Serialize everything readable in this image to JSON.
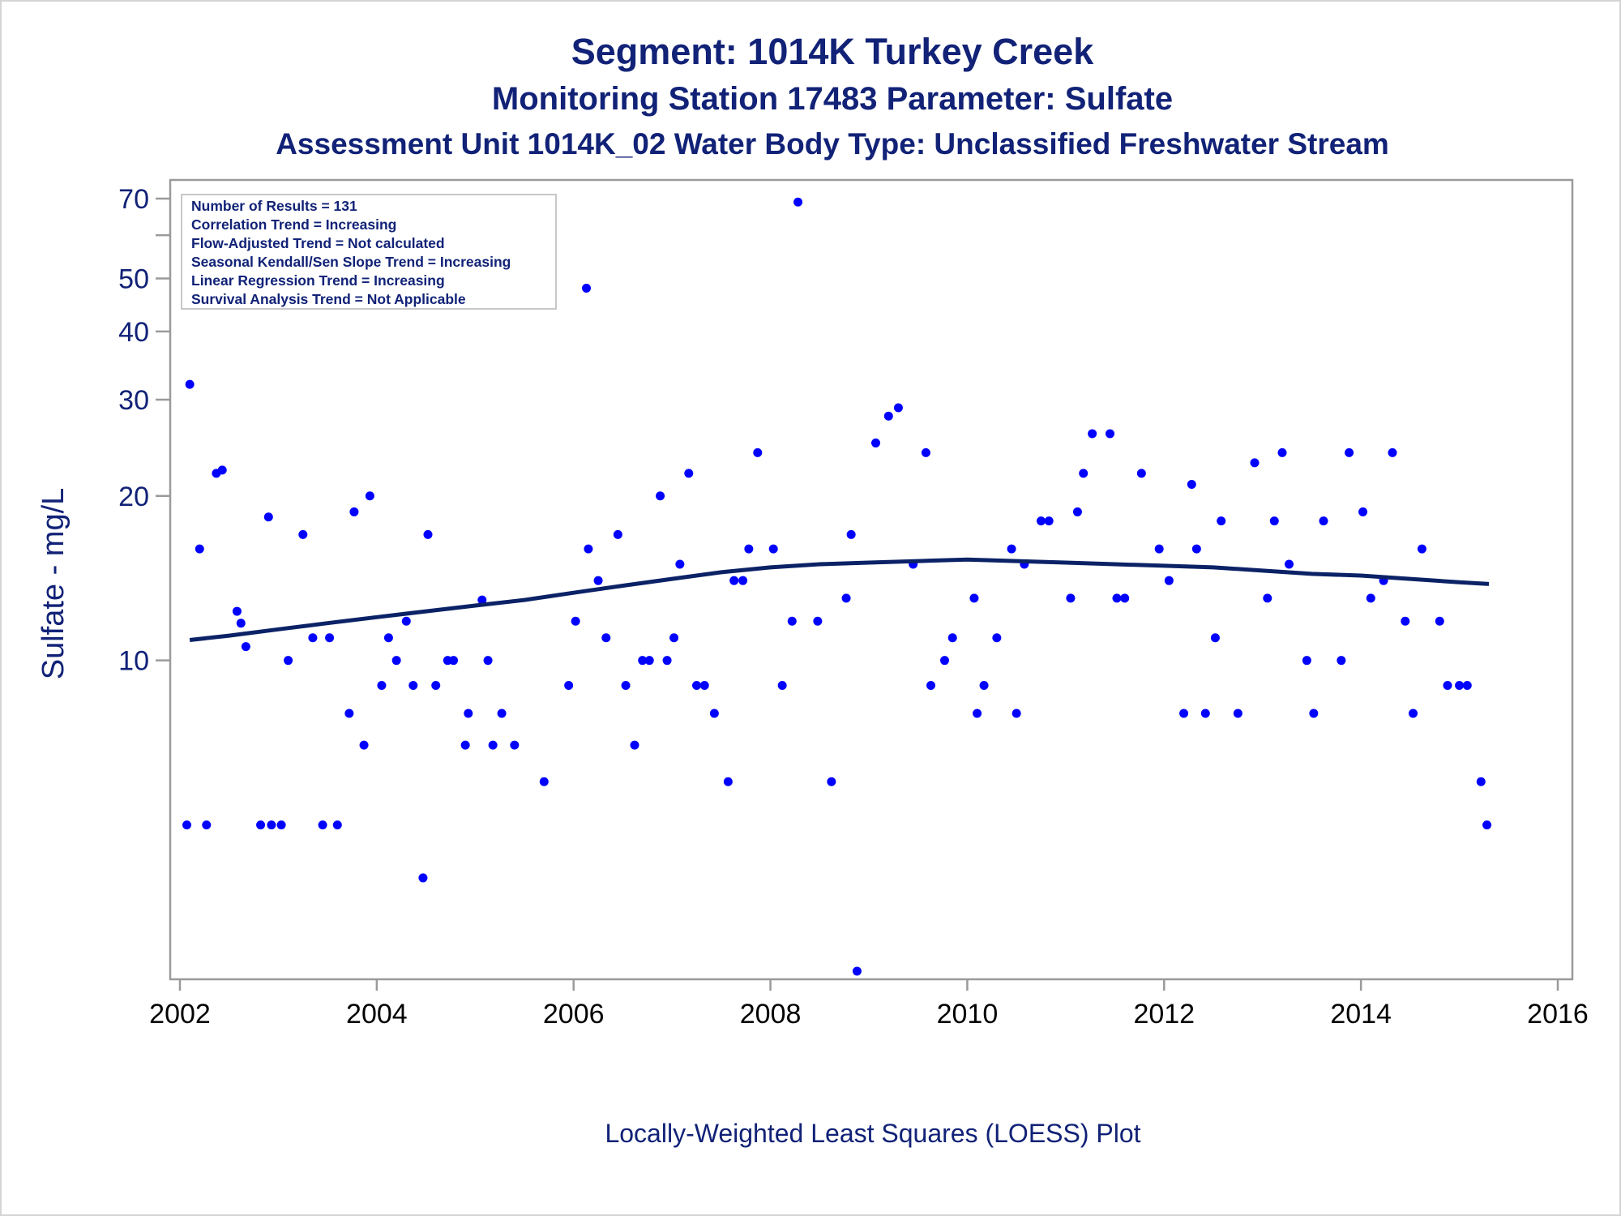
{
  "titles": {
    "line1": "Segment: 1014K  Turkey Creek",
    "line2": "Monitoring Station 17483 Parameter: Sulfate",
    "line3": "Assessment Unit 1014K_02   Water Body Type: Unclassified Freshwater Stream"
  },
  "footnote": "Locally-Weighted Least Squares (LOESS) Plot",
  "inset": [
    "Number of Results = 131",
    "Correlation Trend = Increasing",
    "Flow-Adjusted Trend = Not calculated",
    "Seasonal Kendall/Sen Slope Trend = Increasing",
    "Linear Regression Trend = Increasing",
    "Survival Analysis Trend = Not Applicable"
  ],
  "colors": {
    "text": "#112277",
    "points": "#0000ff",
    "line": "#0b2266",
    "frame": "#9a9a9a"
  },
  "chart_data": {
    "type": "scatter",
    "ylabel": "Sulfate - mg/L",
    "xlabel": "",
    "yscale": "log",
    "xlim": [
      2002,
      2016
    ],
    "ylim": [
      2.7,
      70
    ],
    "xticks": [
      "2002",
      "2004",
      "2006",
      "2008",
      "2010",
      "2012",
      "2014",
      "2016"
    ],
    "yticks": [
      {
        "value": 10,
        "label": "10"
      },
      {
        "value": 20,
        "label": "20"
      },
      {
        "value": 30,
        "label": "30"
      },
      {
        "value": 40,
        "label": "40"
      },
      {
        "value": 50,
        "label": "50"
      },
      {
        "value": 60,
        "label": ""
      },
      {
        "value": 70,
        "label": "70"
      }
    ],
    "points": [
      [
        2002.07,
        5
      ],
      [
        2002.1,
        32
      ],
      [
        2002.2,
        16
      ],
      [
        2002.27,
        5
      ],
      [
        2002.37,
        22
      ],
      [
        2002.43,
        22.3
      ],
      [
        2002.58,
        12.3
      ],
      [
        2002.62,
        11.7
      ],
      [
        2002.67,
        10.6
      ],
      [
        2002.82,
        5
      ],
      [
        2002.9,
        18.3
      ],
      [
        2002.93,
        5
      ],
      [
        2003.03,
        5
      ],
      [
        2003.1,
        10
      ],
      [
        2003.25,
        17
      ],
      [
        2003.35,
        11
      ],
      [
        2003.45,
        5
      ],
      [
        2003.52,
        11
      ],
      [
        2003.6,
        5
      ],
      [
        2003.72,
        8
      ],
      [
        2003.77,
        18.7
      ],
      [
        2003.87,
        7
      ],
      [
        2003.93,
        20
      ],
      [
        2004.05,
        9
      ],
      [
        2004.12,
        11
      ],
      [
        2004.2,
        10
      ],
      [
        2004.3,
        11.8
      ],
      [
        2004.37,
        9
      ],
      [
        2004.47,
        4
      ],
      [
        2004.52,
        17
      ],
      [
        2004.6,
        9
      ],
      [
        2004.72,
        10
      ],
      [
        2004.78,
        10
      ],
      [
        2004.9,
        7
      ],
      [
        2004.93,
        8
      ],
      [
        2005.07,
        12.9
      ],
      [
        2005.13,
        10
      ],
      [
        2005.18,
        7
      ],
      [
        2005.27,
        8
      ],
      [
        2005.4,
        7
      ],
      [
        2005.7,
        6
      ],
      [
        2005.95,
        9
      ],
      [
        2006.02,
        11.8
      ],
      [
        2006.13,
        48
      ],
      [
        2006.15,
        16
      ],
      [
        2006.25,
        14
      ],
      [
        2006.33,
        11
      ],
      [
        2006.45,
        17
      ],
      [
        2006.53,
        9
      ],
      [
        2006.62,
        7
      ],
      [
        2006.7,
        10
      ],
      [
        2006.77,
        10
      ],
      [
        2006.88,
        20
      ],
      [
        2006.95,
        10
      ],
      [
        2007.02,
        11
      ],
      [
        2007.08,
        15
      ],
      [
        2007.17,
        22
      ],
      [
        2007.25,
        9
      ],
      [
        2007.33,
        9
      ],
      [
        2007.43,
        8
      ],
      [
        2007.57,
        6
      ],
      [
        2007.63,
        14
      ],
      [
        2007.72,
        14
      ],
      [
        2007.78,
        16
      ],
      [
        2007.87,
        24
      ],
      [
        2008.03,
        16
      ],
      [
        2008.12,
        9
      ],
      [
        2008.22,
        11.8
      ],
      [
        2008.28,
        69
      ],
      [
        2008.48,
        11.8
      ],
      [
        2008.62,
        6
      ],
      [
        2008.77,
        13
      ],
      [
        2008.82,
        17
      ],
      [
        2008.88,
        2.7
      ],
      [
        2009.07,
        25
      ],
      [
        2009.2,
        28
      ],
      [
        2009.3,
        29
      ],
      [
        2009.45,
        15
      ],
      [
        2009.58,
        24
      ],
      [
        2009.63,
        9
      ],
      [
        2009.77,
        10
      ],
      [
        2009.85,
        11
      ],
      [
        2010.07,
        13
      ],
      [
        2010.1,
        8
      ],
      [
        2010.17,
        9
      ],
      [
        2010.3,
        11
      ],
      [
        2010.45,
        16
      ],
      [
        2010.5,
        8
      ],
      [
        2010.58,
        15
      ],
      [
        2010.75,
        18
      ],
      [
        2010.83,
        18
      ],
      [
        2011.05,
        13
      ],
      [
        2011.12,
        18.7
      ],
      [
        2011.18,
        22
      ],
      [
        2011.27,
        26
      ],
      [
        2011.45,
        26
      ],
      [
        2011.52,
        13
      ],
      [
        2011.6,
        13
      ],
      [
        2011.77,
        22
      ],
      [
        2011.95,
        16
      ],
      [
        2012.05,
        14
      ],
      [
        2012.2,
        8
      ],
      [
        2012.28,
        21
      ],
      [
        2012.33,
        16
      ],
      [
        2012.42,
        8
      ],
      [
        2012.52,
        11
      ],
      [
        2012.58,
        18
      ],
      [
        2012.75,
        8
      ],
      [
        2012.92,
        23
      ],
      [
        2013.05,
        13
      ],
      [
        2013.12,
        18
      ],
      [
        2013.2,
        24
      ],
      [
        2013.27,
        15
      ],
      [
        2013.45,
        10
      ],
      [
        2013.52,
        8
      ],
      [
        2013.62,
        18
      ],
      [
        2013.8,
        10
      ],
      [
        2013.88,
        24
      ],
      [
        2014.02,
        18.7
      ],
      [
        2014.1,
        13
      ],
      [
        2014.23,
        14
      ],
      [
        2014.32,
        24
      ],
      [
        2014.45,
        11.8
      ],
      [
        2014.53,
        8
      ],
      [
        2014.62,
        16
      ],
      [
        2014.8,
        11.8
      ],
      [
        2014.88,
        9
      ],
      [
        2015.0,
        9
      ],
      [
        2015.08,
        9
      ],
      [
        2015.22,
        6
      ],
      [
        2015.28,
        5
      ]
    ],
    "loess": [
      [
        2002.1,
        10.9
      ],
      [
        2002.5,
        11.1
      ],
      [
        2003.0,
        11.4
      ],
      [
        2003.5,
        11.7
      ],
      [
        2004.0,
        12.0
      ],
      [
        2004.5,
        12.3
      ],
      [
        2005.0,
        12.6
      ],
      [
        2005.5,
        12.9
      ],
      [
        2006.0,
        13.3
      ],
      [
        2006.5,
        13.7
      ],
      [
        2007.0,
        14.1
      ],
      [
        2007.5,
        14.5
      ],
      [
        2008.0,
        14.8
      ],
      [
        2008.5,
        15.0
      ],
      [
        2009.0,
        15.1
      ],
      [
        2009.5,
        15.2
      ],
      [
        2010.0,
        15.3
      ],
      [
        2010.5,
        15.2
      ],
      [
        2011.0,
        15.1
      ],
      [
        2011.5,
        15.0
      ],
      [
        2012.0,
        14.9
      ],
      [
        2012.5,
        14.8
      ],
      [
        2013.0,
        14.6
      ],
      [
        2013.5,
        14.4
      ],
      [
        2014.0,
        14.3
      ],
      [
        2014.5,
        14.1
      ],
      [
        2015.0,
        13.9
      ],
      [
        2015.3,
        13.8
      ]
    ]
  }
}
